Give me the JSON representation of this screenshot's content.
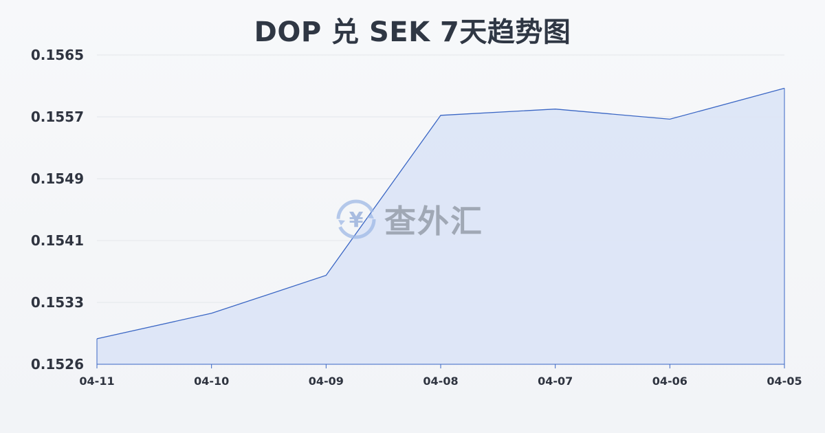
{
  "title": "DOP 兑 SEK 7天趋势图",
  "watermark": {
    "text": "查外汇",
    "icon": "yen-exchange-icon"
  },
  "colors": {
    "line": "#3a66c4",
    "fill": "#dbe4f6",
    "grid": "#e3e6ea"
  },
  "chart_data": {
    "type": "area",
    "title": "DOP 兑 SEK 7天趋势图",
    "x": [
      "04-11",
      "04-10",
      "04-09",
      "04-08",
      "04-07",
      "04-06",
      "04-05"
    ],
    "values": [
      0.15293,
      0.15326,
      0.15375,
      0.15582,
      0.1559,
      0.15577,
      0.15617
    ],
    "yticks": [
      "0.1565",
      "0.1557",
      "0.1549",
      "0.1541",
      "0.1533",
      "0.1526"
    ],
    "ylim": [
      0.1526,
      0.1566
    ],
    "grid": true,
    "legend": "none"
  }
}
